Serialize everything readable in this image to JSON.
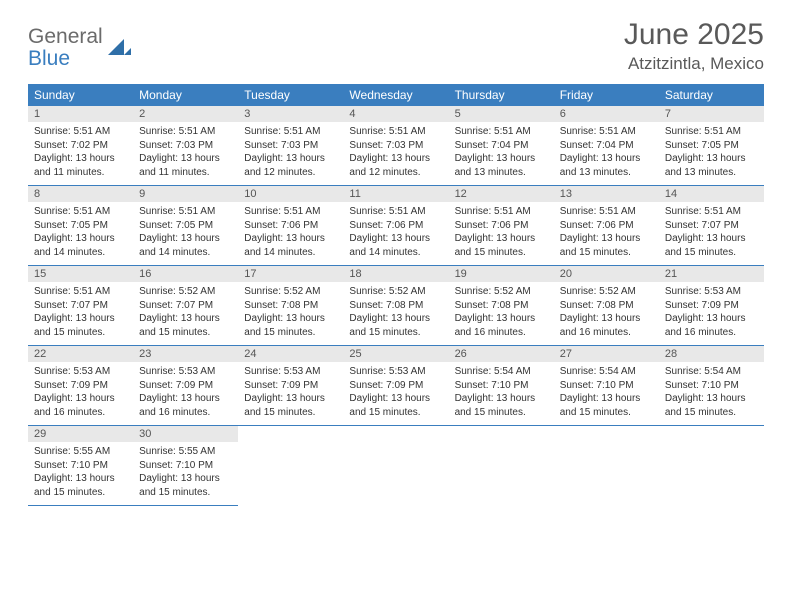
{
  "logo": {
    "general": "General",
    "blue": "Blue"
  },
  "title": "June 2025",
  "location": "Atzitzintla, Mexico",
  "colors": {
    "header_bg": "#3a7ebf",
    "header_text": "#ffffff",
    "daybar_bg": "#e8e8e8",
    "text": "#333333",
    "title_color": "#595959"
  },
  "dayNames": [
    "Sunday",
    "Monday",
    "Tuesday",
    "Wednesday",
    "Thursday",
    "Friday",
    "Saturday"
  ],
  "weeks": [
    [
      {
        "n": "1",
        "sr": "5:51 AM",
        "ss": "7:02 PM",
        "dl": "13 hours and 11 minutes."
      },
      {
        "n": "2",
        "sr": "5:51 AM",
        "ss": "7:03 PM",
        "dl": "13 hours and 11 minutes."
      },
      {
        "n": "3",
        "sr": "5:51 AM",
        "ss": "7:03 PM",
        "dl": "13 hours and 12 minutes."
      },
      {
        "n": "4",
        "sr": "5:51 AM",
        "ss": "7:03 PM",
        "dl": "13 hours and 12 minutes."
      },
      {
        "n": "5",
        "sr": "5:51 AM",
        "ss": "7:04 PM",
        "dl": "13 hours and 13 minutes."
      },
      {
        "n": "6",
        "sr": "5:51 AM",
        "ss": "7:04 PM",
        "dl": "13 hours and 13 minutes."
      },
      {
        "n": "7",
        "sr": "5:51 AM",
        "ss": "7:05 PM",
        "dl": "13 hours and 13 minutes."
      }
    ],
    [
      {
        "n": "8",
        "sr": "5:51 AM",
        "ss": "7:05 PM",
        "dl": "13 hours and 14 minutes."
      },
      {
        "n": "9",
        "sr": "5:51 AM",
        "ss": "7:05 PM",
        "dl": "13 hours and 14 minutes."
      },
      {
        "n": "10",
        "sr": "5:51 AM",
        "ss": "7:06 PM",
        "dl": "13 hours and 14 minutes."
      },
      {
        "n": "11",
        "sr": "5:51 AM",
        "ss": "7:06 PM",
        "dl": "13 hours and 14 minutes."
      },
      {
        "n": "12",
        "sr": "5:51 AM",
        "ss": "7:06 PM",
        "dl": "13 hours and 15 minutes."
      },
      {
        "n": "13",
        "sr": "5:51 AM",
        "ss": "7:06 PM",
        "dl": "13 hours and 15 minutes."
      },
      {
        "n": "14",
        "sr": "5:51 AM",
        "ss": "7:07 PM",
        "dl": "13 hours and 15 minutes."
      }
    ],
    [
      {
        "n": "15",
        "sr": "5:51 AM",
        "ss": "7:07 PM",
        "dl": "13 hours and 15 minutes."
      },
      {
        "n": "16",
        "sr": "5:52 AM",
        "ss": "7:07 PM",
        "dl": "13 hours and 15 minutes."
      },
      {
        "n": "17",
        "sr": "5:52 AM",
        "ss": "7:08 PM",
        "dl": "13 hours and 15 minutes."
      },
      {
        "n": "18",
        "sr": "5:52 AM",
        "ss": "7:08 PM",
        "dl": "13 hours and 15 minutes."
      },
      {
        "n": "19",
        "sr": "5:52 AM",
        "ss": "7:08 PM",
        "dl": "13 hours and 16 minutes."
      },
      {
        "n": "20",
        "sr": "5:52 AM",
        "ss": "7:08 PM",
        "dl": "13 hours and 16 minutes."
      },
      {
        "n": "21",
        "sr": "5:53 AM",
        "ss": "7:09 PM",
        "dl": "13 hours and 16 minutes."
      }
    ],
    [
      {
        "n": "22",
        "sr": "5:53 AM",
        "ss": "7:09 PM",
        "dl": "13 hours and 16 minutes."
      },
      {
        "n": "23",
        "sr": "5:53 AM",
        "ss": "7:09 PM",
        "dl": "13 hours and 16 minutes."
      },
      {
        "n": "24",
        "sr": "5:53 AM",
        "ss": "7:09 PM",
        "dl": "13 hours and 15 minutes."
      },
      {
        "n": "25",
        "sr": "5:53 AM",
        "ss": "7:09 PM",
        "dl": "13 hours and 15 minutes."
      },
      {
        "n": "26",
        "sr": "5:54 AM",
        "ss": "7:10 PM",
        "dl": "13 hours and 15 minutes."
      },
      {
        "n": "27",
        "sr": "5:54 AM",
        "ss": "7:10 PM",
        "dl": "13 hours and 15 minutes."
      },
      {
        "n": "28",
        "sr": "5:54 AM",
        "ss": "7:10 PM",
        "dl": "13 hours and 15 minutes."
      }
    ],
    [
      {
        "n": "29",
        "sr": "5:55 AM",
        "ss": "7:10 PM",
        "dl": "13 hours and 15 minutes."
      },
      {
        "n": "30",
        "sr": "5:55 AM",
        "ss": "7:10 PM",
        "dl": "13 hours and 15 minutes."
      },
      null,
      null,
      null,
      null,
      null
    ]
  ],
  "labels": {
    "sunrise": "Sunrise: ",
    "sunset": "Sunset: ",
    "daylight": "Daylight: "
  }
}
